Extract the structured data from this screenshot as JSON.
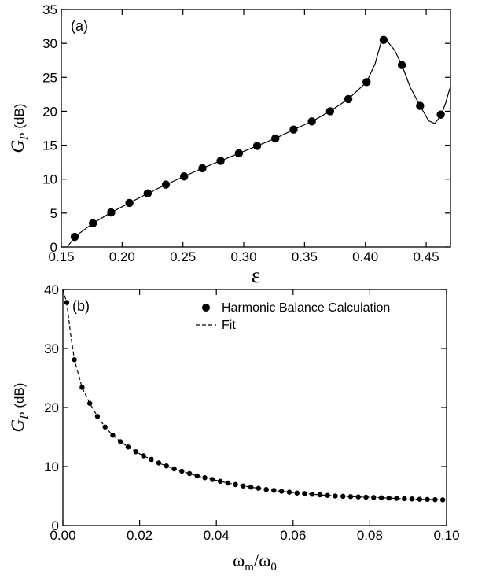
{
  "chart_data": [
    {
      "type": "scatter",
      "panel_label": "(a)",
      "xlabel": "ε",
      "ylabel": {
        "symbol": "G",
        "subscript": "P",
        "unit": "(dB)"
      },
      "xlim": [
        0.15,
        0.47
      ],
      "ylim": [
        0,
        35
      ],
      "xticks": [
        "0.15",
        "0.20",
        "0.25",
        "0.30",
        "0.35",
        "0.40",
        "0.45"
      ],
      "yticks": [
        "0",
        "5",
        "10",
        "15",
        "20",
        "25",
        "30",
        "35"
      ],
      "grid": false,
      "series": [
        {
          "kind": "points",
          "x": [
            0.161,
            0.176,
            0.191,
            0.206,
            0.221,
            0.236,
            0.251,
            0.266,
            0.281,
            0.296,
            0.311,
            0.326,
            0.341,
            0.356,
            0.371,
            0.386,
            0.401,
            0.415,
            0.43,
            0.445,
            0.462
          ],
          "y": [
            1.5,
            3.5,
            5.1,
            6.5,
            7.9,
            9.2,
            10.4,
            11.6,
            12.7,
            13.8,
            14.9,
            16.0,
            17.3,
            18.5,
            20.0,
            21.8,
            24.3,
            30.5,
            26.8,
            20.8,
            19.5
          ]
        },
        {
          "kind": "solid-curve",
          "x": [
            0.155,
            0.161,
            0.176,
            0.191,
            0.206,
            0.221,
            0.236,
            0.251,
            0.266,
            0.281,
            0.296,
            0.311,
            0.326,
            0.341,
            0.356,
            0.371,
            0.386,
            0.401,
            0.408,
            0.413,
            0.418,
            0.424,
            0.43,
            0.437,
            0.445,
            0.452,
            0.457,
            0.462,
            0.466,
            0.47
          ],
          "y": [
            0.0,
            1.5,
            3.5,
            5.1,
            6.5,
            7.9,
            9.2,
            10.4,
            11.6,
            12.7,
            13.8,
            14.9,
            16.0,
            17.3,
            18.5,
            20.0,
            21.8,
            24.3,
            27.0,
            30.2,
            30.3,
            29.0,
            26.8,
            23.5,
            20.8,
            18.6,
            18.2,
            19.3,
            21.2,
            23.7
          ]
        }
      ]
    },
    {
      "type": "scatter",
      "panel_label": "(b)",
      "xlabel": {
        "base": "ω",
        "num_sub": "m",
        "den_sub": "0"
      },
      "ylabel": {
        "symbol": "G",
        "subscript": "P",
        "unit": "(dB)"
      },
      "xlim": [
        0,
        0.1
      ],
      "ylim": [
        0,
        40
      ],
      "xticks": [
        "0.00",
        "0.02",
        "0.04",
        "0.06",
        "0.08",
        "0.10"
      ],
      "yticks": [
        "0",
        "10",
        "20",
        "30",
        "40"
      ],
      "grid": false,
      "legend": {
        "placement": "top-right",
        "entries": [
          "Harmonic Balance Calculation",
          "Fit"
        ]
      },
      "series": [
        {
          "name": "Harmonic Balance Calculation",
          "kind": "points",
          "x": [
            0.001,
            0.003,
            0.005,
            0.007,
            0.009,
            0.011,
            0.013,
            0.015,
            0.017,
            0.019,
            0.021,
            0.023,
            0.025,
            0.027,
            0.029,
            0.031,
            0.033,
            0.035,
            0.037,
            0.039,
            0.041,
            0.043,
            0.045,
            0.047,
            0.049,
            0.051,
            0.053,
            0.055,
            0.057,
            0.059,
            0.061,
            0.063,
            0.065,
            0.067,
            0.069,
            0.071,
            0.073,
            0.075,
            0.077,
            0.079,
            0.081,
            0.083,
            0.085,
            0.087,
            0.089,
            0.091,
            0.093,
            0.095,
            0.097,
            0.099
          ],
          "y": [
            37.8,
            28.1,
            23.4,
            20.7,
            18.5,
            16.7,
            15.3,
            14.2,
            13.3,
            12.5,
            11.8,
            11.2,
            10.6,
            10.1,
            9.6,
            9.2,
            8.8,
            8.4,
            8.1,
            7.8,
            7.5,
            7.2,
            6.95,
            6.7,
            6.5,
            6.3,
            6.1,
            5.95,
            5.8,
            5.65,
            5.5,
            5.4,
            5.3,
            5.2,
            5.1,
            5.0,
            4.95,
            4.9,
            4.85,
            4.8,
            4.75,
            4.7,
            4.65,
            4.6,
            4.55,
            4.5,
            4.45,
            4.42,
            4.38,
            4.35
          ]
        },
        {
          "name": "Fit",
          "kind": "dashed-curve",
          "x": [
            0.0,
            0.001,
            0.002,
            0.003,
            0.005,
            0.007,
            0.009,
            0.011,
            0.013,
            0.015,
            0.017,
            0.019,
            0.021,
            0.023,
            0.025,
            0.027,
            0.029,
            0.031,
            0.033,
            0.035,
            0.037,
            0.039,
            0.041,
            0.043,
            0.045,
            0.047,
            0.049,
            0.051,
            0.053,
            0.055,
            0.057,
            0.059,
            0.061,
            0.063,
            0.065,
            0.067,
            0.069,
            0.071,
            0.073,
            0.075,
            0.077,
            0.079,
            0.081,
            0.083,
            0.085,
            0.087,
            0.089,
            0.091,
            0.093,
            0.095,
            0.097,
            0.099,
            0.1
          ],
          "y": [
            40.0,
            37.8,
            32.5,
            28.1,
            23.4,
            20.7,
            18.5,
            16.7,
            15.3,
            14.2,
            13.3,
            12.5,
            11.8,
            11.2,
            10.6,
            10.1,
            9.6,
            9.2,
            8.8,
            8.4,
            8.1,
            7.8,
            7.5,
            7.2,
            6.95,
            6.7,
            6.5,
            6.3,
            6.1,
            5.95,
            5.8,
            5.65,
            5.5,
            5.4,
            5.3,
            5.2,
            5.1,
            5.0,
            4.95,
            4.9,
            4.85,
            4.8,
            4.75,
            4.7,
            4.65,
            4.6,
            4.55,
            4.5,
            4.45,
            4.42,
            4.38,
            4.35,
            4.33
          ]
        }
      ]
    }
  ]
}
